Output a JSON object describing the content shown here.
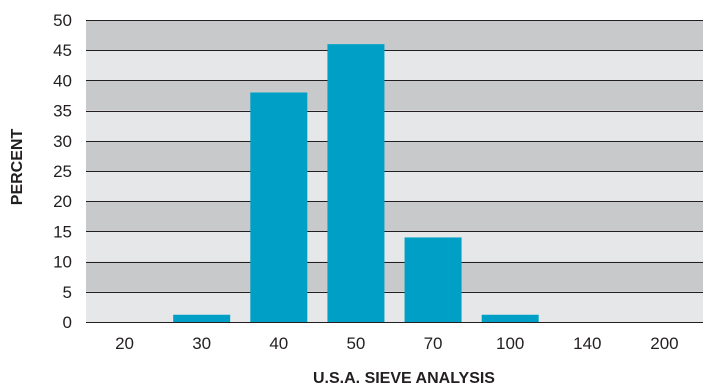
{
  "chart_data": {
    "type": "bar",
    "title": "",
    "xlabel": "U.S.A. SIEVE ANALYSIS",
    "ylabel": "PERCENT",
    "categories": [
      "20",
      "30",
      "40",
      "50",
      "70",
      "100",
      "140",
      "200"
    ],
    "values": [
      0,
      1.2,
      38,
      46,
      14,
      1.2,
      0,
      0
    ],
    "ylim": [
      0,
      50
    ],
    "yticks": [
      "0",
      "5",
      "10",
      "15",
      "20",
      "25",
      "30",
      "35",
      "40",
      "45",
      "50"
    ],
    "grid": true,
    "legend": "none",
    "colors": {
      "bar": "#00a0c6",
      "band_dark": "#c8c9cb",
      "band_light": "#e6e7e8",
      "gridline": "#231f20",
      "text": "#231f20"
    }
  }
}
